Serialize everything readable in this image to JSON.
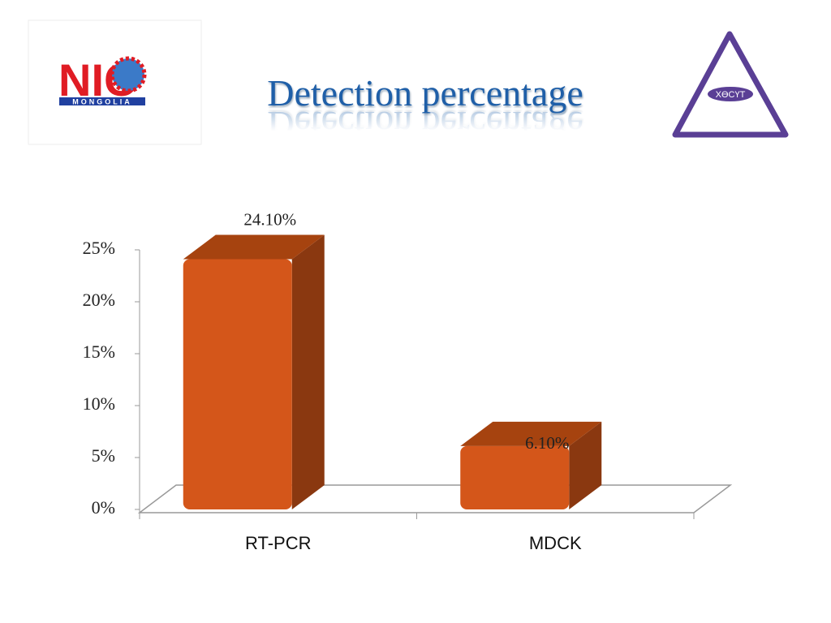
{
  "chart_data": {
    "type": "bar3d",
    "title": "Detection percentage",
    "categories": [
      "RT-PCR",
      "MDCK"
    ],
    "values": [
      24.1,
      6.1
    ],
    "value_labels": [
      "24.10%",
      "6.10%"
    ],
    "color": "#d4561a",
    "ylim": [
      0,
      25
    ],
    "yticks": [
      {
        "value": 0,
        "label": "0%"
      },
      {
        "value": 5,
        "label": "5%"
      },
      {
        "value": 10,
        "label": "10%"
      },
      {
        "value": 15,
        "label": "15%"
      },
      {
        "value": 20,
        "label": "20%"
      },
      {
        "value": 25,
        "label": "25%"
      }
    ]
  },
  "logos": {
    "left": {
      "text": "NIC",
      "subtext": "MONGOLIA"
    },
    "right": {
      "text": "ХӨСҮТ"
    }
  }
}
